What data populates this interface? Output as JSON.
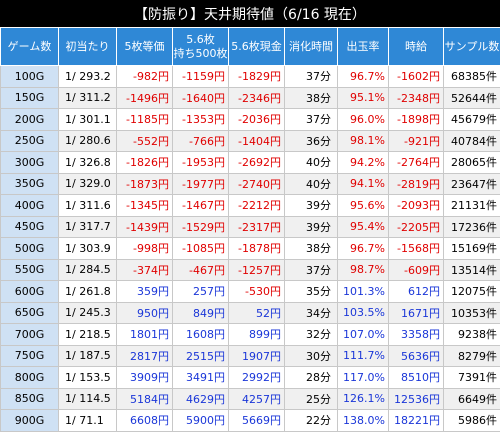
{
  "title": "【防振り】天井期待値（6/16 現在）",
  "headers": [
    "ゲーム数",
    "初当たり",
    "5枚等価",
    "5.6枚\n持ち500枚",
    "5.6枚現金",
    "消化時間",
    "出玉率",
    "時給",
    "サンプル数"
  ],
  "rows": [
    [
      "100G",
      "1/ 293.2",
      "-982円",
      "-1159円",
      "-1829円",
      "37分",
      "96.7%",
      "-1602円",
      "68385件"
    ],
    [
      "150G",
      "1/ 311.2",
      "-1496円",
      "-1640円",
      "-2346円",
      "38分",
      "95.1%",
      "-2348円",
      "52644件"
    ],
    [
      "200G",
      "1/ 301.1",
      "-1185円",
      "-1353円",
      "-2036円",
      "37分",
      "96.0%",
      "-1898円",
      "45679件"
    ],
    [
      "250G",
      "1/ 280.6",
      "-552円",
      "-766円",
      "-1404円",
      "36分",
      "98.1%",
      "-921円",
      "40784件"
    ],
    [
      "300G",
      "1/ 326.8",
      "-1826円",
      "-1953円",
      "-2692円",
      "40分",
      "94.2%",
      "-2764円",
      "28065件"
    ],
    [
      "350G",
      "1/ 329.0",
      "-1873円",
      "-1977円",
      "-2740円",
      "40分",
      "94.1%",
      "-2819円",
      "23647件"
    ],
    [
      "400G",
      "1/ 311.6",
      "-1345円",
      "-1467円",
      "-2212円",
      "39分",
      "95.6%",
      "-2093円",
      "21131件"
    ],
    [
      "450G",
      "1/ 317.7",
      "-1439円",
      "-1529円",
      "-2317円",
      "39分",
      "95.4%",
      "-2205円",
      "17236件"
    ],
    [
      "500G",
      "1/ 303.9",
      "-998円",
      "-1085円",
      "-1878円",
      "38分",
      "96.7%",
      "-1568円",
      "15169件"
    ],
    [
      "550G",
      "1/ 284.5",
      "-374円",
      "-467円",
      "-1257円",
      "37分",
      "98.7%",
      "-609円",
      "13514件"
    ],
    [
      "600G",
      "1/ 261.8",
      "359円",
      "257円",
      "-530円",
      "35分",
      "101.3%",
      "612円",
      "12075件"
    ],
    [
      "650G",
      "1/ 245.3",
      "950円",
      "849円",
      "52円",
      "34分",
      "103.5%",
      "1671円",
      "10353件"
    ],
    [
      "700G",
      "1/ 218.5",
      "1801円",
      "1608円",
      "899円",
      "32分",
      "107.0%",
      "3358円",
      "9238件"
    ],
    [
      "750G",
      "1/ 187.5",
      "2817円",
      "2515円",
      "1907円",
      "30分",
      "111.7%",
      "5636円",
      "8279件"
    ],
    [
      "800G",
      "1/ 153.5",
      "3909円",
      "3491円",
      "2992円",
      "28分",
      "117.0%",
      "8510円",
      "7391件"
    ],
    [
      "850G",
      "1/ 114.5",
      "5184円",
      "4629円",
      "4257円",
      "25分",
      "126.1%",
      "12536円",
      "6649件"
    ],
    [
      "900G",
      "1/ 71.1",
      "6608円",
      "5900円",
      "5669円",
      "22分",
      "138.0%",
      "18221円",
      "5986件"
    ]
  ]
}
